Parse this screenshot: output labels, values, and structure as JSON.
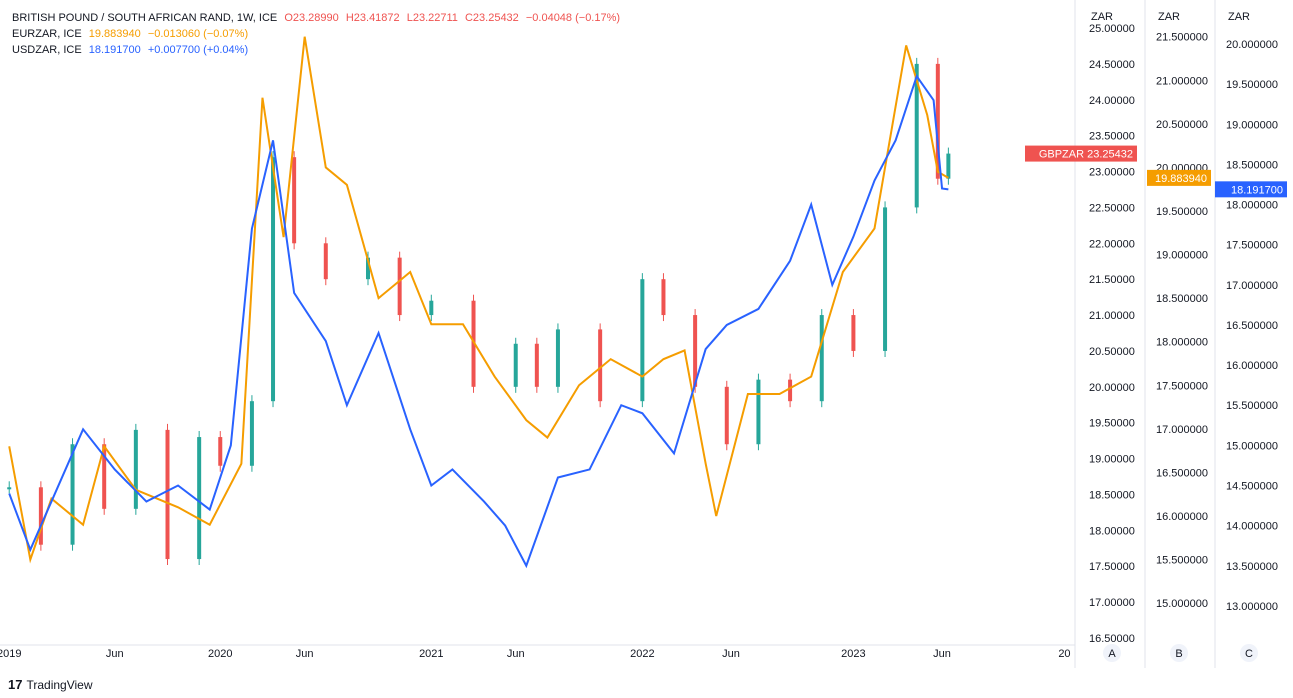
{
  "legend": {
    "gbp": {
      "name": "BRITISH POUND / SOUTH AFRICAN RAND, 1W, ICE",
      "o": "O23.28990",
      "h": "H23.41872",
      "l": "L23.22711",
      "c": "C23.25432",
      "chg": "−0.04048 (−0.17%)",
      "color": "#ef5350"
    },
    "eur": {
      "name": "EURZAR, ICE",
      "last": "19.883940",
      "chg": "−0.013060 (−0.07%)",
      "color": "#f59d00"
    },
    "usd": {
      "name": "USDZAR, ICE",
      "last": "18.191700",
      "chg": "+0.007700 (+0.04%)",
      "color": "#2962ff"
    }
  },
  "footer": {
    "brand": "TradingView"
  },
  "chart_data": {
    "type": "line",
    "x_axis_labels": [
      "2019",
      "Jun",
      "2020",
      "Jun",
      "2021",
      "Jun",
      "2022",
      "Jun",
      "2023",
      "Jun",
      "20"
    ],
    "scales": [
      {
        "id": "A",
        "title": "ZAR",
        "series": "GBPZAR",
        "ticks": [
          "16.50000",
          "17.00000",
          "17.50000",
          "18.00000",
          "18.50000",
          "19.00000",
          "19.50000",
          "20.00000",
          "20.50000",
          "21.00000",
          "21.50000",
          "22.00000",
          "22.50000",
          "23.00000",
          "23.50000",
          "24.00000",
          "24.50000",
          "25.00000"
        ],
        "range": [
          16.5,
          25.0
        ]
      },
      {
        "id": "B",
        "title": "ZAR",
        "series": "EURZAR",
        "ticks": [
          "15.000000",
          "15.500000",
          "16.000000",
          "16.500000",
          "17.000000",
          "17.500000",
          "18.000000",
          "18.500000",
          "19.000000",
          "19.500000",
          "20.000000",
          "20.500000",
          "21.000000",
          "21.500000"
        ],
        "range": [
          14.6,
          21.6
        ]
      },
      {
        "id": "C",
        "title": "ZAR",
        "series": "USDZAR",
        "ticks": [
          "13.000000",
          "13.500000",
          "14.000000",
          "14.500000",
          "15.000000",
          "15.500000",
          "16.000000",
          "16.500000",
          "17.000000",
          "17.500000",
          "18.000000",
          "18.500000",
          "19.000000",
          "19.500000",
          "20.000000"
        ],
        "range": [
          12.6,
          20.2
        ]
      }
    ],
    "series": [
      {
        "name": "GBPZAR",
        "style": "candles",
        "last_label": "23.25432",
        "colors": {
          "up": "#26a69a",
          "down": "#ef5350"
        },
        "x": [
          2019.0,
          2019.15,
          2019.3,
          2019.45,
          2019.6,
          2019.75,
          2019.9,
          2020.0,
          2020.15,
          2020.25,
          2020.35,
          2020.5,
          2020.7,
          2020.85,
          2021.0,
          2021.2,
          2021.4,
          2021.5,
          2021.6,
          2021.8,
          2022.0,
          2022.1,
          2022.25,
          2022.4,
          2022.55,
          2022.7,
          2022.85,
          2023.0,
          2023.15,
          2023.3,
          2023.4,
          2023.45
        ],
        "values": [
          18.6,
          17.8,
          19.2,
          18.3,
          19.4,
          17.6,
          19.3,
          18.9,
          19.8,
          23.2,
          22.0,
          21.5,
          21.8,
          21.0,
          21.2,
          20.0,
          20.6,
          20.0,
          20.8,
          19.8,
          21.5,
          21.0,
          20.0,
          19.2,
          20.1,
          19.8,
          21.0,
          20.5,
          22.5,
          24.5,
          22.9,
          23.25
        ]
      },
      {
        "name": "EURZAR",
        "style": "line",
        "color": "#f59d00",
        "last_label": "19.883940",
        "x": [
          2019.0,
          2019.1,
          2019.2,
          2019.35,
          2019.45,
          2019.6,
          2019.8,
          2019.95,
          2020.1,
          2020.2,
          2020.3,
          2020.4,
          2020.5,
          2020.6,
          2020.75,
          2020.9,
          2021.0,
          2021.15,
          2021.3,
          2021.45,
          2021.55,
          2021.7,
          2021.85,
          2022.0,
          2022.1,
          2022.2,
          2022.3,
          2022.35,
          2022.5,
          2022.65,
          2022.8,
          2022.95,
          2023.1,
          2023.25,
          2023.35,
          2023.4,
          2023.45
        ],
        "values": [
          16.8,
          15.5,
          16.2,
          15.9,
          16.8,
          16.3,
          16.1,
          15.9,
          16.6,
          20.8,
          19.2,
          21.5,
          20.0,
          19.8,
          18.5,
          18.8,
          18.2,
          18.2,
          17.6,
          17.1,
          16.9,
          17.5,
          17.8,
          17.6,
          17.8,
          17.9,
          16.6,
          16.0,
          17.4,
          17.4,
          17.6,
          18.8,
          19.3,
          21.4,
          20.6,
          19.95,
          19.88
        ]
      },
      {
        "name": "USDZAR",
        "style": "line",
        "color": "#2962ff",
        "last_label": "18.191700",
        "x": [
          2019.0,
          2019.1,
          2019.2,
          2019.35,
          2019.5,
          2019.65,
          2019.8,
          2019.95,
          2020.05,
          2020.15,
          2020.25,
          2020.35,
          2020.5,
          2020.6,
          2020.75,
          2020.9,
          2021.0,
          2021.1,
          2021.25,
          2021.35,
          2021.45,
          2021.6,
          2021.75,
          2021.9,
          2022.0,
          2022.15,
          2022.3,
          2022.4,
          2022.55,
          2022.7,
          2022.8,
          2022.9,
          2023.0,
          2023.1,
          2023.2,
          2023.3,
          2023.38,
          2023.42,
          2023.45
        ],
        "values": [
          14.4,
          13.7,
          14.3,
          15.2,
          14.7,
          14.3,
          14.5,
          14.2,
          15.0,
          17.7,
          18.8,
          16.9,
          16.3,
          15.5,
          16.4,
          15.2,
          14.5,
          14.7,
          14.3,
          14.0,
          13.5,
          14.6,
          14.7,
          15.5,
          15.4,
          14.9,
          16.2,
          16.5,
          16.7,
          17.3,
          18.0,
          17.0,
          17.6,
          18.3,
          18.8,
          19.6,
          19.3,
          18.2,
          18.19
        ]
      }
    ]
  }
}
